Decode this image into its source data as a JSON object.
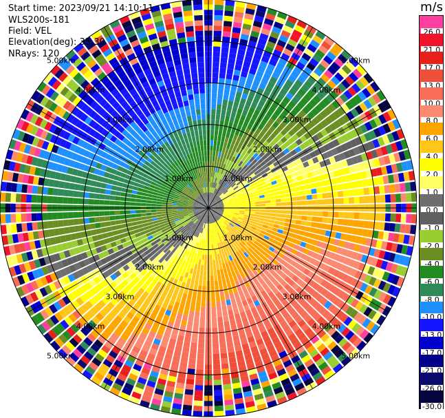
{
  "header": {
    "start_time": "Start time: 2023/09/21 14:10:11",
    "instrument": "WLS200s-181",
    "field": "Field: VEL",
    "elevation": "Elevation(deg): 35.30",
    "nrays": "NRays: 120"
  },
  "colorbar": {
    "unit": "m/s",
    "entries": [
      {
        "label": "26.0",
        "color": "#ff3fa0"
      },
      {
        "label": "21.0",
        "color": "#f0142a"
      },
      {
        "label": "17.0",
        "color": "#e8201a"
      },
      {
        "label": "13.0",
        "color": "#f0503a"
      },
      {
        "label": "10.0",
        "color": "#f86e58"
      },
      {
        "label": "8.0",
        "color": "#fb8a70"
      },
      {
        "label": "6.0",
        "color": "#ffa500"
      },
      {
        "label": "4.0",
        "color": "#ffc61a"
      },
      {
        "label": "2.0",
        "color": "#ffff00"
      },
      {
        "label": "1.0",
        "color": "#ffff66"
      },
      {
        "label": "0.0",
        "color": "#6e6e6e"
      },
      {
        "label": "-1.0",
        "color": "#606060"
      },
      {
        "label": "-2.0",
        "color": "#9acd32"
      },
      {
        "label": "-4.0",
        "color": "#6b8e23"
      },
      {
        "label": "-6.0",
        "color": "#228b22"
      },
      {
        "label": "-8.0",
        "color": "#2e8b57"
      },
      {
        "label": "-10.0",
        "color": "#1e90ff"
      },
      {
        "label": "-13.0",
        "color": "#1515ff"
      },
      {
        "label": "-17.0",
        "color": "#0000cd"
      },
      {
        "label": "-21.0",
        "color": "#00008b"
      },
      {
        "label": "-26.0",
        "color": "#0a0a6e"
      },
      {
        "label": "-30.0",
        "color": "#050540"
      }
    ]
  },
  "chart_data": {
    "type": "heatmap",
    "projection": "polar PPI",
    "field": "VEL",
    "unit": "m/s",
    "nrays": 120,
    "elevation_deg": 35.3,
    "range_rings_km": [
      1.0,
      2.0,
      3.0,
      4.0,
      5.0
    ],
    "ring_labels": [
      "1.00km",
      "2.00km",
      "3.00km",
      "4.00km",
      "5.00km"
    ],
    "max_range_km": 5.0,
    "colorbar_ticks": [
      26.0,
      21.0,
      17.0,
      13.0,
      10.0,
      8.0,
      6.0,
      4.0,
      2.0,
      1.0,
      0.0,
      -1.0,
      -2.0,
      -4.0,
      -6.0,
      -8.0,
      -10.0,
      -13.0,
      -17.0,
      -21.0,
      -26.0,
      -30.0
    ],
    "pattern": {
      "positive_lobe_direction_deg": 110,
      "negative_lobe_direction_deg": 290,
      "noise_starts_km": 3.9
    },
    "colors": {
      "grid": "#000000",
      "ray_gap": "#ffffff"
    }
  }
}
